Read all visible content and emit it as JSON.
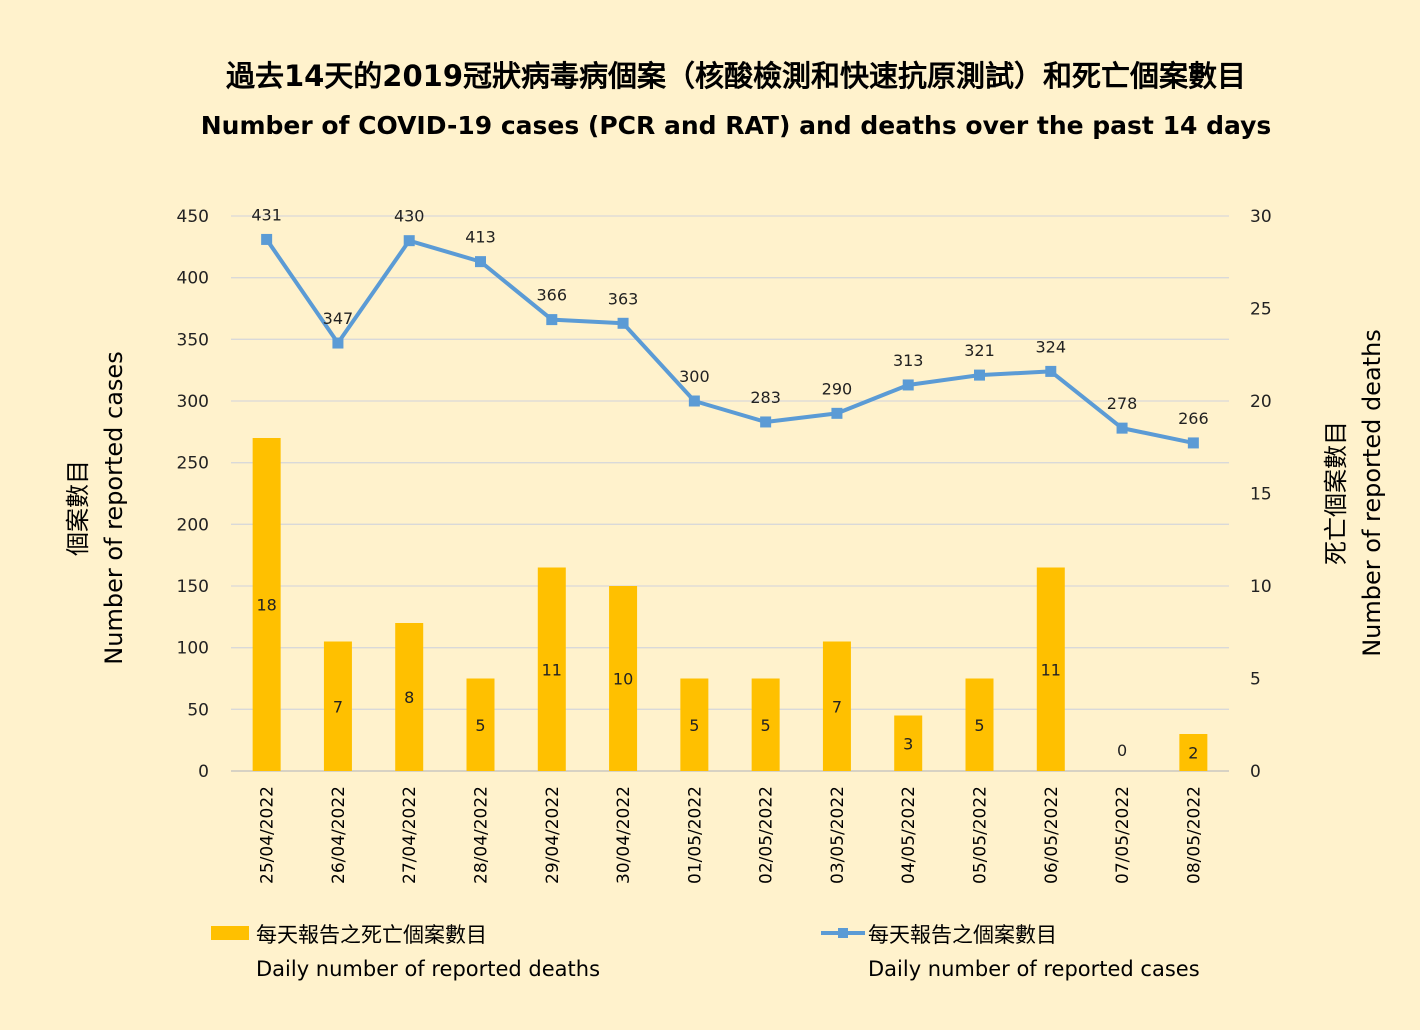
{
  "chart_data": {
    "type": "bar+line",
    "title": "過去14天的2019冠狀病毒病個案（核酸檢測和快速抗原測試）和死亡個案數目",
    "subtitle": "Number of COVID-19 cases (PCR and RAT) and deaths over the past 14 days",
    "categories": [
      "25/04/2022",
      "26/04/2022",
      "27/04/2022",
      "28/04/2022",
      "29/04/2022",
      "30/04/2022",
      "01/05/2022",
      "02/05/2022",
      "03/05/2022",
      "04/05/2022",
      "05/05/2022",
      "06/05/2022",
      "07/05/2022",
      "08/05/2022"
    ],
    "y_left": {
      "label_zh": "個案數目",
      "label_en": "Number of reported cases",
      "ylim": [
        0,
        450
      ],
      "ticks": [
        0,
        50,
        100,
        150,
        200,
        250,
        300,
        350,
        400,
        450
      ]
    },
    "y_right": {
      "label_zh": "死亡個案數目",
      "label_en": "Number of reported deaths",
      "ylim": [
        0,
        30
      ],
      "ticks": [
        0,
        5,
        10,
        15,
        20,
        25,
        30
      ]
    },
    "series": [
      {
        "name_zh": "每天報告之死亡個案數目",
        "name_en": "Daily number of reported deaths",
        "type": "bar",
        "axis": "right",
        "color": "#FFC000",
        "values": [
          18,
          7,
          8,
          5,
          11,
          10,
          5,
          5,
          7,
          3,
          5,
          11,
          0,
          2
        ]
      },
      {
        "name_zh": "每天報告之個案數目",
        "name_en": "Daily number of reported cases",
        "type": "line",
        "axis": "left",
        "color": "#5B9BD5",
        "values": [
          431,
          347,
          430,
          413,
          366,
          363,
          300,
          283,
          290,
          313,
          321,
          324,
          278,
          266
        ]
      }
    ],
    "grid": true,
    "legend_position": "bottom"
  }
}
